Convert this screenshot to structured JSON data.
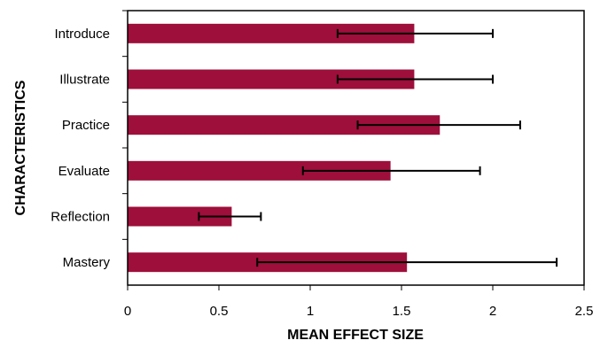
{
  "chart_data": {
    "type": "bar",
    "orientation": "horizontal",
    "title": "",
    "xlabel": "MEAN EFFECT SIZE",
    "ylabel": "CHARACTERISTICS",
    "categories": [
      "Introduce",
      "Illustrate",
      "Practice",
      "Evaluate",
      "Reflection",
      "Mastery"
    ],
    "values": [
      1.57,
      1.57,
      1.71,
      1.44,
      0.57,
      1.53
    ],
    "error_low": [
      1.15,
      1.15,
      1.26,
      0.96,
      0.39,
      0.71
    ],
    "error_high": [
      2.0,
      2.0,
      2.15,
      1.93,
      0.73,
      2.35
    ],
    "xlim": [
      0,
      2.5
    ],
    "xticks": [
      0,
      0.5,
      1,
      1.5,
      2,
      2.5
    ],
    "xtick_labels": [
      "0",
      "0.5",
      "1",
      "1.5",
      "2",
      "2.5"
    ],
    "grid": false,
    "legend": "none",
    "colors": {
      "bar": "#9e0f3b",
      "error_bar": "#000000",
      "frame": "#000000"
    }
  }
}
